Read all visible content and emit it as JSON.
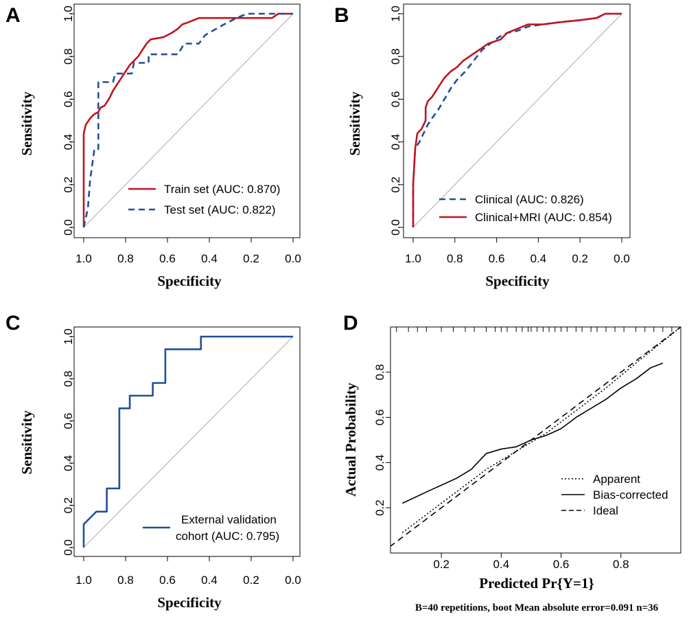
{
  "colors": {
    "red": "#c0141e",
    "blue": "#1f4e9c",
    "black": "#000000",
    "diagonal": "#aaaaaa"
  },
  "chart_data": [
    {
      "panel": "A",
      "type": "line",
      "xlabel": "Specificity",
      "ylabel": "Sensitivity",
      "xlim": [
        1.0,
        0.0
      ],
      "ylim": [
        0.0,
        1.0
      ],
      "xticks": [
        "1.0",
        "0.8",
        "0.6",
        "0.4",
        "0.2",
        "0.0"
      ],
      "yticks": [
        "0.0",
        "0.2",
        "0.4",
        "0.6",
        "0.8",
        "1.0"
      ],
      "reference_line": true,
      "legend_position": "bottom-right",
      "series": [
        {
          "name": "Train set (AUC: 0.870)",
          "color": "#c0141e",
          "dash": "solid",
          "points": [
            [
              1.0,
              0.0
            ],
            [
              1.0,
              0.44
            ],
            [
              0.99,
              0.48
            ],
            [
              0.97,
              0.51
            ],
            [
              0.95,
              0.53
            ],
            [
              0.93,
              0.54
            ],
            [
              0.92,
              0.56
            ],
            [
              0.9,
              0.57
            ],
            [
              0.88,
              0.6
            ],
            [
              0.86,
              0.64
            ],
            [
              0.84,
              0.67
            ],
            [
              0.82,
              0.7
            ],
            [
              0.8,
              0.73
            ],
            [
              0.78,
              0.76
            ],
            [
              0.76,
              0.78
            ],
            [
              0.74,
              0.8
            ],
            [
              0.72,
              0.83
            ],
            [
              0.7,
              0.86
            ],
            [
              0.68,
              0.88
            ],
            [
              0.62,
              0.89
            ],
            [
              0.58,
              0.91
            ],
            [
              0.55,
              0.93
            ],
            [
              0.53,
              0.95
            ],
            [
              0.5,
              0.96
            ],
            [
              0.45,
              0.98
            ],
            [
              0.3,
              0.98
            ],
            [
              0.1,
              0.98
            ],
            [
              0.07,
              1.0
            ],
            [
              0.0,
              1.0
            ]
          ]
        },
        {
          "name": "Test set (AUC: 0.822)",
          "color": "#1f4e9c",
          "dash": "dashed",
          "points": [
            [
              1.0,
              0.0
            ],
            [
              0.98,
              0.09
            ],
            [
              0.97,
              0.22
            ],
            [
              0.95,
              0.36
            ],
            [
              0.93,
              0.36
            ],
            [
              0.93,
              0.68
            ],
            [
              0.86,
              0.68
            ],
            [
              0.85,
              0.72
            ],
            [
              0.77,
              0.72
            ],
            [
              0.76,
              0.77
            ],
            [
              0.69,
              0.77
            ],
            [
              0.69,
              0.81
            ],
            [
              0.55,
              0.81
            ],
            [
              0.52,
              0.86
            ],
            [
              0.45,
              0.86
            ],
            [
              0.42,
              0.9
            ],
            [
              0.33,
              0.95
            ],
            [
              0.27,
              0.98
            ],
            [
              0.22,
              1.0
            ],
            [
              0.0,
              1.0
            ]
          ]
        }
      ]
    },
    {
      "panel": "B",
      "type": "line",
      "xlabel": "Specificity",
      "ylabel": "Sensitivity",
      "xlim": [
        1.0,
        0.0
      ],
      "ylim": [
        0.0,
        1.0
      ],
      "xticks": [
        "1.0",
        "0.8",
        "0.6",
        "0.4",
        "0.2",
        "0.0"
      ],
      "yticks": [
        "0.0",
        "0.2",
        "0.4",
        "0.6",
        "0.8",
        "1.0"
      ],
      "reference_line": true,
      "legend_position": "bottom-right",
      "series": [
        {
          "name": "Clinical (AUC: 0.826)",
          "color": "#1f4e9c",
          "dash": "dashed",
          "points": [
            [
              1.0,
              0.0
            ],
            [
              1.0,
              0.2
            ],
            [
              0.99,
              0.37
            ],
            [
              0.97,
              0.4
            ],
            [
              0.95,
              0.44
            ],
            [
              0.93,
              0.48
            ],
            [
              0.91,
              0.51
            ],
            [
              0.88,
              0.55
            ],
            [
              0.85,
              0.6
            ],
            [
              0.82,
              0.65
            ],
            [
              0.79,
              0.69
            ],
            [
              0.75,
              0.73
            ],
            [
              0.71,
              0.78
            ],
            [
              0.67,
              0.83
            ],
            [
              0.63,
              0.86
            ],
            [
              0.59,
              0.89
            ],
            [
              0.55,
              0.91
            ],
            [
              0.5,
              0.92
            ],
            [
              0.45,
              0.94
            ],
            [
              0.38,
              0.95
            ],
            [
              0.3,
              0.96
            ],
            [
              0.2,
              0.97
            ],
            [
              0.12,
              0.98
            ],
            [
              0.08,
              1.0
            ],
            [
              0.0,
              1.0
            ]
          ]
        },
        {
          "name": "Clinical+MRI (AUC: 0.854)",
          "color": "#c0141e",
          "dash": "solid",
          "points": [
            [
              1.0,
              0.0
            ],
            [
              1.0,
              0.2
            ],
            [
              0.99,
              0.37
            ],
            [
              0.98,
              0.44
            ],
            [
              0.96,
              0.46
            ],
            [
              0.94,
              0.5
            ],
            [
              0.94,
              0.56
            ],
            [
              0.93,
              0.59
            ],
            [
              0.91,
              0.61
            ],
            [
              0.89,
              0.64
            ],
            [
              0.87,
              0.67
            ],
            [
              0.85,
              0.7
            ],
            [
              0.82,
              0.73
            ],
            [
              0.79,
              0.75
            ],
            [
              0.76,
              0.78
            ],
            [
              0.73,
              0.8
            ],
            [
              0.7,
              0.82
            ],
            [
              0.67,
              0.84
            ],
            [
              0.64,
              0.86
            ],
            [
              0.61,
              0.87
            ],
            [
              0.58,
              0.88
            ],
            [
              0.55,
              0.91
            ],
            [
              0.5,
              0.93
            ],
            [
              0.45,
              0.95
            ],
            [
              0.38,
              0.95
            ],
            [
              0.3,
              0.96
            ],
            [
              0.2,
              0.97
            ],
            [
              0.12,
              0.98
            ],
            [
              0.08,
              1.0
            ],
            [
              0.0,
              1.0
            ]
          ]
        }
      ]
    },
    {
      "panel": "C",
      "type": "line",
      "xlabel": "Specificity",
      "ylabel": "Sensitivity",
      "xlim": [
        1.0,
        0.0
      ],
      "ylim": [
        0.0,
        1.0
      ],
      "xticks": [
        "1.0",
        "0.8",
        "0.6",
        "0.4",
        "0.2",
        "0.0"
      ],
      "yticks": [
        "0.0",
        "0.2",
        "0.4",
        "0.6",
        "0.8",
        "1.0"
      ],
      "reference_line": true,
      "legend_position": "bottom-right",
      "legend_lines": [
        "External validation",
        "cohort (AUC: 0.795)"
      ],
      "series": [
        {
          "name": "External validation cohort (AUC: 0.795)",
          "color": "#1f4e9c",
          "dash": "solid",
          "points": [
            [
              1.0,
              0.0
            ],
            [
              1.0,
              0.11
            ],
            [
              0.94,
              0.17
            ],
            [
              0.89,
              0.17
            ],
            [
              0.89,
              0.28
            ],
            [
              0.83,
              0.28
            ],
            [
              0.83,
              0.66
            ],
            [
              0.78,
              0.66
            ],
            [
              0.78,
              0.72
            ],
            [
              0.67,
              0.72
            ],
            [
              0.67,
              0.78
            ],
            [
              0.61,
              0.78
            ],
            [
              0.61,
              0.94
            ],
            [
              0.44,
              0.94
            ],
            [
              0.44,
              1.0
            ],
            [
              0.0,
              1.0
            ]
          ]
        }
      ]
    },
    {
      "panel": "D",
      "type": "line",
      "title": "",
      "xlabel": "Predicted Pr{Y=1}",
      "ylabel": "Actual Probability",
      "xlim": [
        0.03,
        1.0
      ],
      "ylim": [
        0.0,
        1.0
      ],
      "xticks": [
        "0.2",
        "0.4",
        "0.6",
        "0.8"
      ],
      "yticks": [
        "0.2",
        "0.4",
        "0.6",
        "0.8"
      ],
      "legend_position": "bottom-right",
      "rug_ticks": [
        0.05,
        0.09,
        0.12,
        0.15,
        0.2,
        0.24,
        0.28,
        0.31,
        0.35,
        0.38,
        0.4,
        0.42,
        0.45,
        0.47,
        0.49,
        0.5,
        0.52,
        0.54,
        0.56,
        0.58,
        0.6,
        0.62,
        0.65,
        0.67,
        0.7,
        0.72,
        0.75,
        0.78,
        0.81,
        0.85,
        0.88,
        0.91,
        0.94,
        0.97
      ],
      "series": [
        {
          "name": "Apparent",
          "color": "#000000",
          "dash": "dotted",
          "points": [
            [
              0.07,
              0.09
            ],
            [
              0.15,
              0.17
            ],
            [
              0.25,
              0.27
            ],
            [
              0.35,
              0.37
            ],
            [
              0.45,
              0.45
            ],
            [
              0.55,
              0.53
            ],
            [
              0.65,
              0.63
            ],
            [
              0.75,
              0.73
            ],
            [
              0.85,
              0.84
            ],
            [
              1.0,
              1.0
            ]
          ]
        },
        {
          "name": "Bias-corrected",
          "color": "#000000",
          "dash": "solid",
          "points": [
            [
              0.07,
              0.22
            ],
            [
              0.15,
              0.27
            ],
            [
              0.25,
              0.33
            ],
            [
              0.3,
              0.37
            ],
            [
              0.35,
              0.44
            ],
            [
              0.4,
              0.46
            ],
            [
              0.45,
              0.47
            ],
            [
              0.5,
              0.5
            ],
            [
              0.55,
              0.52
            ],
            [
              0.6,
              0.55
            ],
            [
              0.65,
              0.6
            ],
            [
              0.7,
              0.64
            ],
            [
              0.75,
              0.68
            ],
            [
              0.8,
              0.73
            ],
            [
              0.85,
              0.77
            ],
            [
              0.9,
              0.82
            ],
            [
              0.94,
              0.84
            ]
          ]
        },
        {
          "name": "Ideal",
          "color": "#000000",
          "dash": "dashed",
          "points": [
            [
              0.0,
              0.0
            ],
            [
              1.0,
              1.0
            ]
          ]
        }
      ],
      "footnote": "B=40 repetitions, boot Mean absolute error=0.091 n=36"
    }
  ]
}
